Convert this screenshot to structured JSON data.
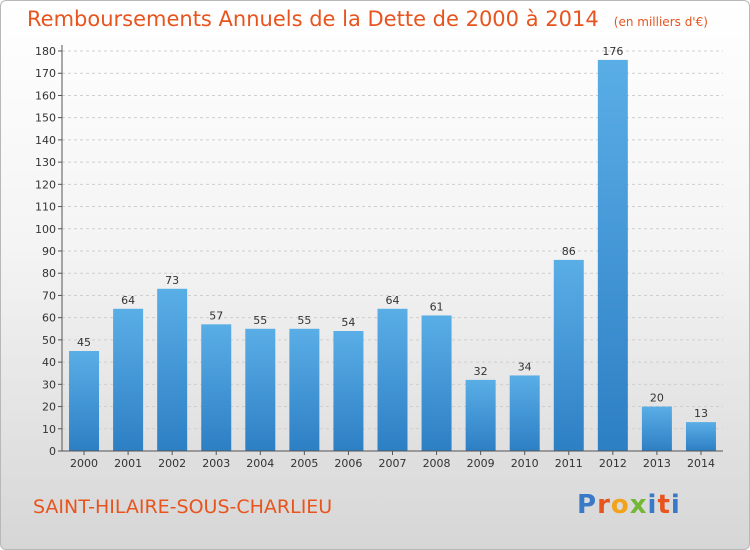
{
  "title": "Remboursements Annuels de la Dette de 2000 à 2014",
  "unit": "(en milliers d'€)",
  "commune": "SAINT-HILAIRE-SOUS-CHARLIEU",
  "logo": {
    "letters": [
      "P",
      "r",
      "o",
      "x",
      "i",
      "t",
      "i"
    ]
  },
  "colors": {
    "title": "#e8541e",
    "bar_top": "#5aaee6",
    "bar_bottom": "#2d7fc4"
  },
  "chart_data": {
    "type": "bar",
    "categories": [
      "2000",
      "2001",
      "2002",
      "2003",
      "2004",
      "2005",
      "2006",
      "2007",
      "2008",
      "2009",
      "2010",
      "2011",
      "2012",
      "2013",
      "2014"
    ],
    "values": [
      45,
      64,
      73,
      57,
      55,
      55,
      54,
      64,
      61,
      32,
      34,
      86,
      176,
      20,
      13
    ],
    "ylim": [
      0,
      180
    ],
    "yticks": [
      0,
      10,
      20,
      30,
      40,
      50,
      60,
      70,
      80,
      90,
      100,
      110,
      120,
      130,
      140,
      150,
      160,
      170,
      180
    ],
    "grid": true,
    "data_labels": true
  }
}
